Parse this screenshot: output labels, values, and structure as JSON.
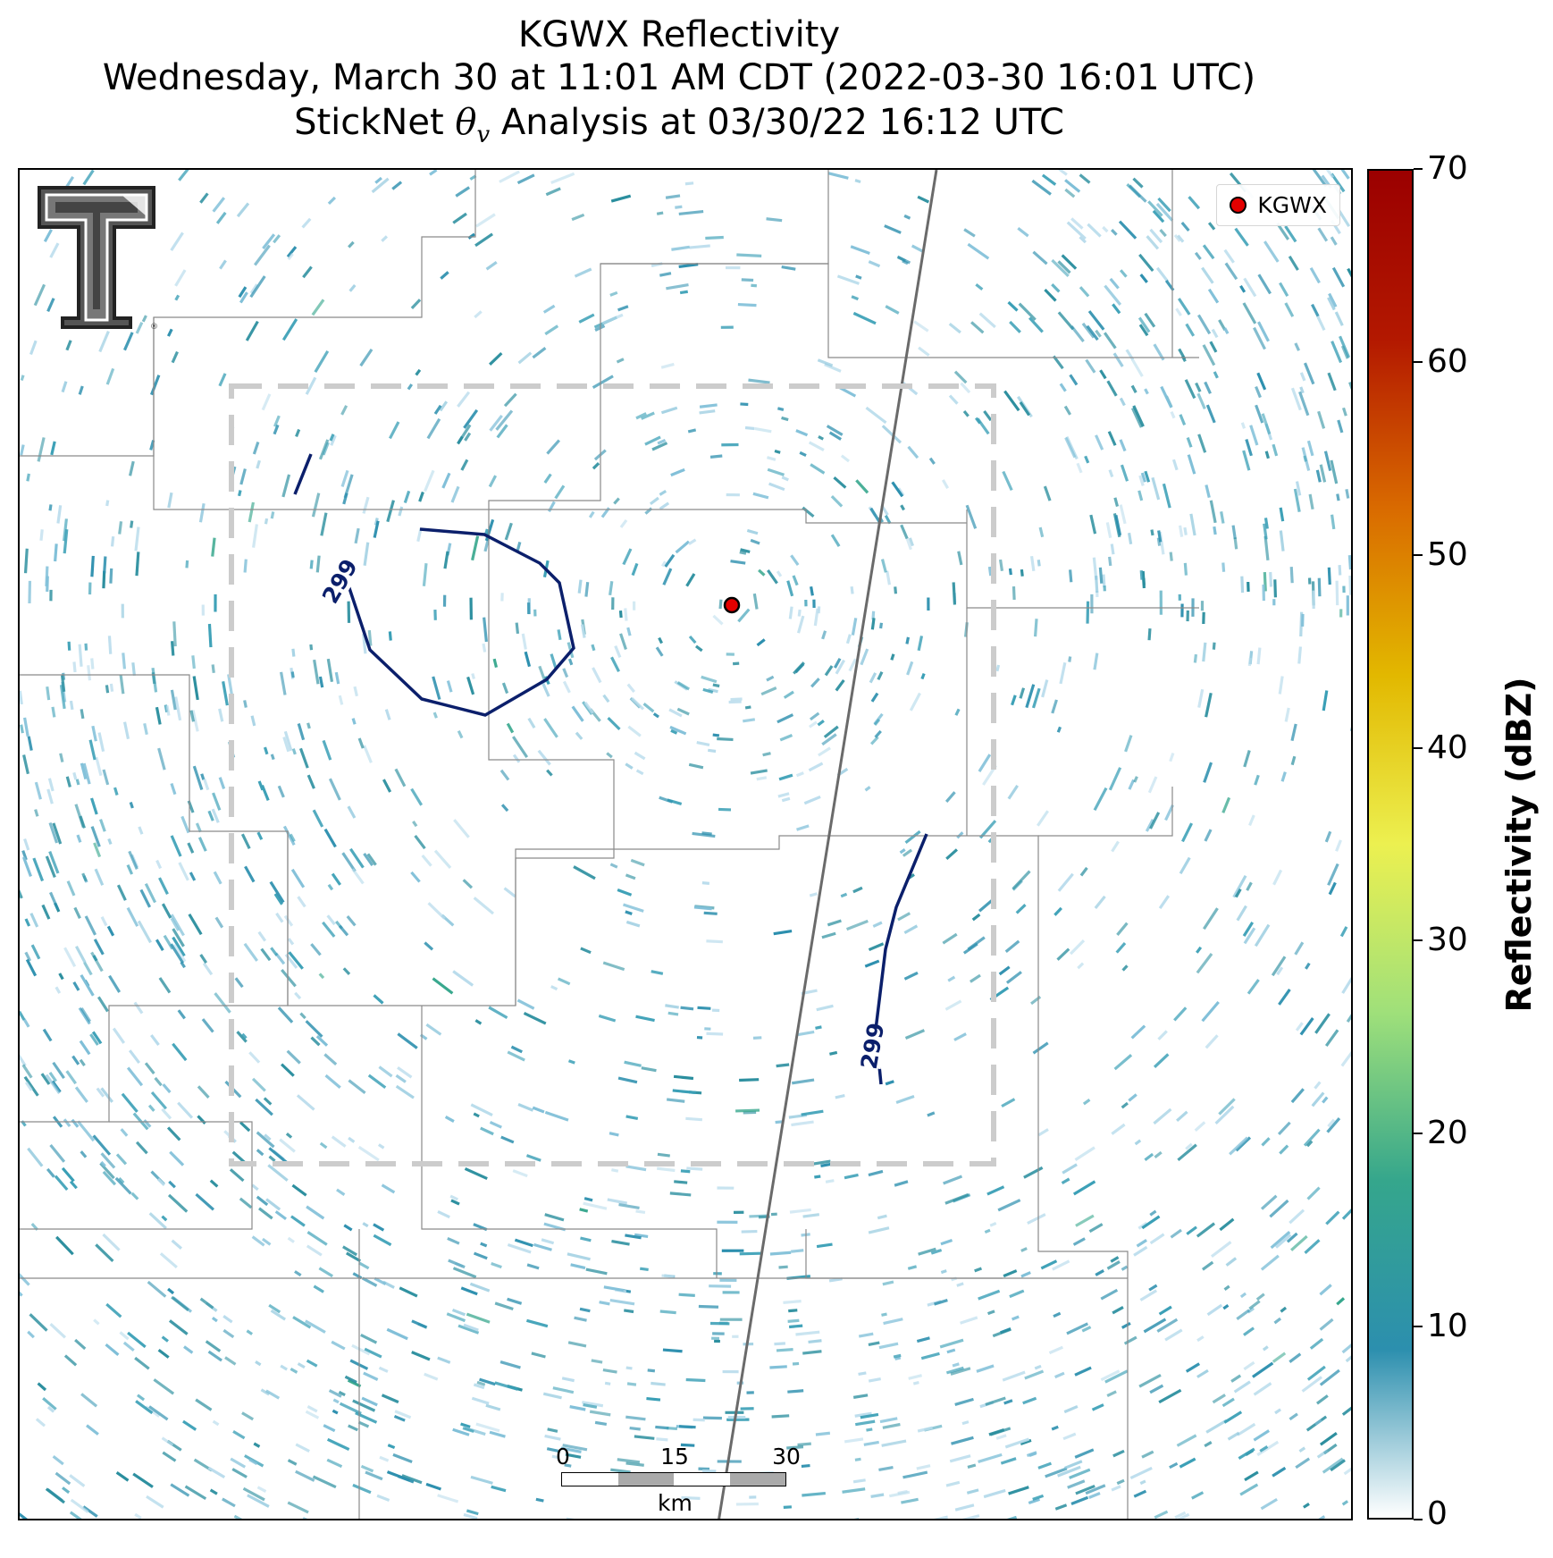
{
  "title": {
    "line1": "KGWX Reflectivity",
    "line2": "Wednesday, March 30 at 11:01 AM CDT (2022-03-30 16:01 UTC)",
    "line3_prefix": "StickNet ",
    "line3_symbol": "θ",
    "line3_subscript": "v",
    "line3_suffix": " Analysis at 03/30/22 16:12 UTC"
  },
  "legend": {
    "label": "KGWX"
  },
  "colorbar": {
    "label": "Reflectivity (dBZ)",
    "ticks": [
      "0",
      "10",
      "20",
      "30",
      "40",
      "50",
      "60",
      "70"
    ],
    "range": [
      0,
      70
    ],
    "colors": [
      "#ffffff",
      "#2c8fae",
      "#35a68c",
      "#9fe07a",
      "#ecf050",
      "#e2b800",
      "#d96a00",
      "#b31800",
      "#9b0000"
    ]
  },
  "contours": {
    "label": "299",
    "color": "#0b1f6b"
  },
  "scalebar": {
    "ticks": [
      "0",
      "15",
      "30"
    ],
    "unit": "km"
  },
  "logo": {
    "text": "T",
    "description": "Texas Tech double-T logo"
  },
  "colors": {
    "radar_marker": "#e30000",
    "dashed_box": "#cccccc",
    "boundaries": "#8a8a8a",
    "highway": "#6a6a6a"
  }
}
